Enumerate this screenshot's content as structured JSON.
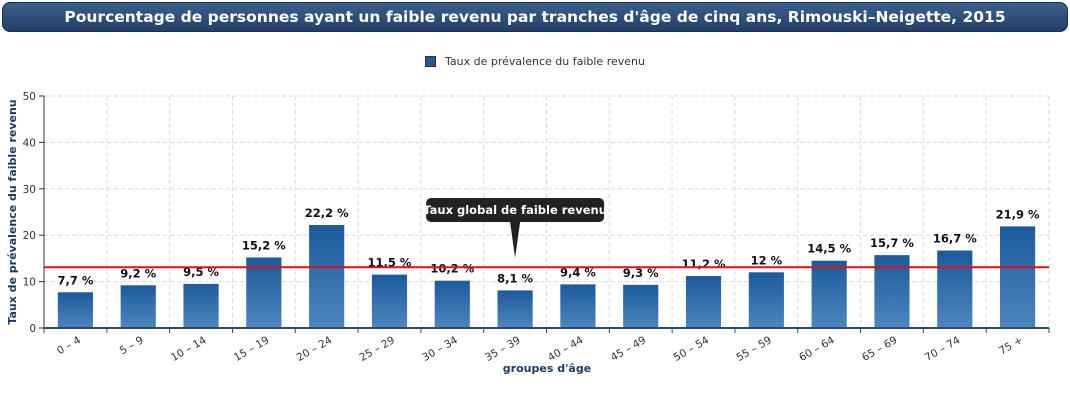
{
  "chart_data": {
    "type": "bar",
    "title": "Pourcentage de personnes ayant un faible revenu par tranches d'âge de cinq ans, Rimouski–Neigette, 2015",
    "xlabel": "groupes d'âge",
    "ylabel": "Taux de prévalence du faible revenu",
    "ylim": [
      0,
      50
    ],
    "yticks": [
      0,
      10,
      20,
      30,
      40,
      50
    ],
    "grid": true,
    "legend_position": "top-center",
    "categories": [
      "0 – 4",
      "5 – 9",
      "10 – 14",
      "15 – 19",
      "20 – 24",
      "25 – 29",
      "30 – 34",
      "35 – 39",
      "40 – 44",
      "45 – 49",
      "50 – 54",
      "55 – 59",
      "60 – 64",
      "65 – 69",
      "70 – 74",
      "75 +"
    ],
    "series": [
      {
        "name": "Taux de prévalence du faible revenu",
        "values": [
          7.7,
          9.2,
          9.5,
          15.2,
          22.2,
          11.5,
          10.2,
          8.1,
          9.4,
          9.3,
          11.2,
          12,
          14.5,
          15.7,
          16.7,
          21.9
        ],
        "labels": [
          "7,7 %",
          "9,2 %",
          "9,5 %",
          "15,2 %",
          "22,2 %",
          "11,5 %",
          "10,2 %",
          "8,1 %",
          "9,4 %",
          "9,3 %",
          "11,2 %",
          "12 %",
          "14,5 %",
          "15,7 %",
          "16,7 %",
          "21,9 %"
        ],
        "color": "#1c5a9c",
        "color_light": "#4e86bf"
      }
    ],
    "reference_line": {
      "value": 13.1,
      "label": "Taux global de faible revenu",
      "color": "#d6141c",
      "tooltip_category_index": 7
    }
  }
}
